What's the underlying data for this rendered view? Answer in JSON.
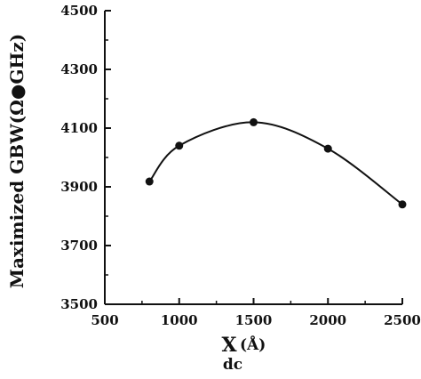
{
  "chart_data": {
    "type": "line",
    "title": "",
    "ylabel": "Maximized GBW(Ω●GHz)",
    "xlabel": {
      "main": "X",
      "subscript": "dc",
      "unit": "(Å)"
    },
    "xlim": [
      500,
      2500
    ],
    "ylim": [
      3500,
      4500
    ],
    "xticks": [
      500,
      1000,
      1500,
      2000,
      2500
    ],
    "yticks": [
      3500,
      3700,
      3900,
      4100,
      4300,
      4500
    ],
    "xtick_labels": [
      "500",
      "1000",
      "1500",
      "2000",
      "2500"
    ],
    "ytick_labels": [
      "3500",
      "3700",
      "3900",
      "4100",
      "4300",
      "4500"
    ],
    "grid": false,
    "smooth": true,
    "marker": "circle",
    "color": "#111111",
    "series": [
      {
        "x": [
          800,
          1000,
          1500,
          2000,
          2500
        ],
        "y": [
          3918,
          4040,
          4120,
          4030,
          3840
        ]
      }
    ]
  }
}
